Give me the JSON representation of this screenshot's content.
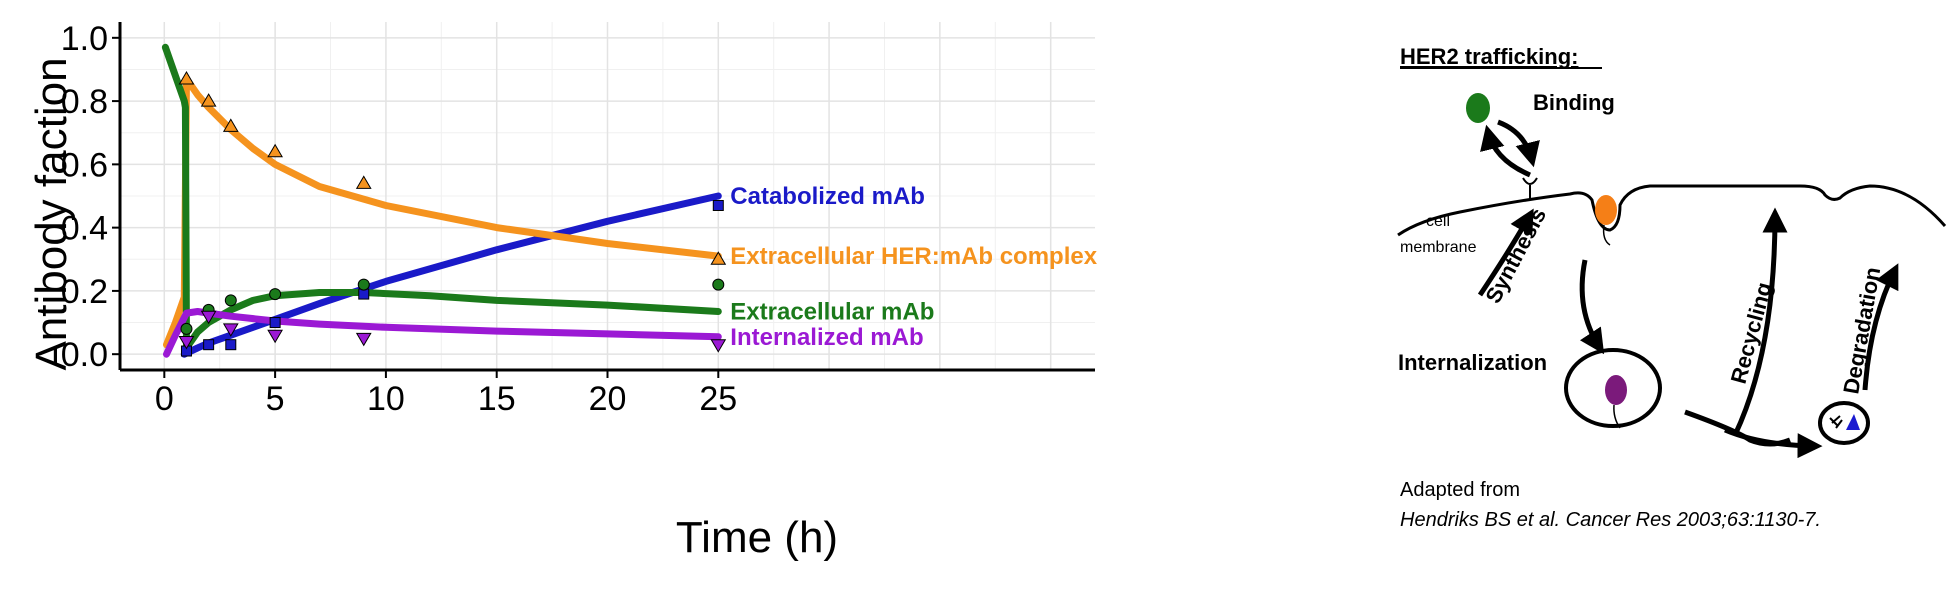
{
  "chart_data": {
    "type": "line",
    "xlabel": "Time (h)",
    "ylabel": "Antibody faction",
    "xlim": [
      -2,
      42
    ],
    "ylim": [
      -0.05,
      1.05
    ],
    "x_ticks": [
      0,
      5,
      10,
      15,
      20,
      25
    ],
    "y_ticks": [
      0.0,
      0.2,
      0.4,
      0.6,
      0.8,
      1.0
    ],
    "x_tick_labels": [
      "0",
      "5",
      "10",
      "15",
      "20",
      "25"
    ],
    "y_tick_labels": [
      "0.0",
      "0.2",
      "0.4",
      "0.6",
      "0.8",
      "1.0"
    ],
    "grid": true,
    "series": [
      {
        "name": "Catabolized mAb",
        "color": "#1a1ac8",
        "marker": "square",
        "curve": [
          [
            0.9,
            0.0
          ],
          [
            1.5,
            0.02
          ],
          [
            2,
            0.035
          ],
          [
            3,
            0.06
          ],
          [
            4,
            0.085
          ],
          [
            5,
            0.11
          ],
          [
            7,
            0.16
          ],
          [
            10,
            0.23
          ],
          [
            15,
            0.33
          ],
          [
            20,
            0.42
          ],
          [
            25,
            0.5
          ]
        ],
        "observed": [
          [
            1,
            0.01
          ],
          [
            2,
            0.03
          ],
          [
            3,
            0.03
          ],
          [
            5,
            0.1
          ],
          [
            9,
            0.19
          ],
          [
            25,
            0.47
          ]
        ]
      },
      {
        "name": "Extracellular HER:mAb complex",
        "color": "#f5931e",
        "marker": "triangle-up",
        "curve": [
          [
            0.1,
            0.03
          ],
          [
            0.5,
            0.1
          ],
          [
            0.9,
            0.18
          ],
          [
            1,
            0.87
          ],
          [
            1.5,
            0.82
          ],
          [
            2,
            0.78
          ],
          [
            3,
            0.71
          ],
          [
            4,
            0.65
          ],
          [
            5,
            0.6
          ],
          [
            7,
            0.53
          ],
          [
            10,
            0.47
          ],
          [
            15,
            0.4
          ],
          [
            20,
            0.35
          ],
          [
            25,
            0.31
          ]
        ],
        "observed": [
          [
            1,
            0.87
          ],
          [
            2,
            0.8
          ],
          [
            3,
            0.72
          ],
          [
            5,
            0.64
          ],
          [
            9,
            0.54
          ],
          [
            25,
            0.3
          ]
        ]
      },
      {
        "name": "Extracellular mAb",
        "color": "#1b7a1b",
        "marker": "circle",
        "curve": [
          [
            0.05,
            0.97
          ],
          [
            0.5,
            0.88
          ],
          [
            0.9,
            0.8
          ],
          [
            0.95,
            0.78
          ],
          [
            1,
            0.02
          ],
          [
            1.5,
            0.07
          ],
          [
            2,
            0.1
          ],
          [
            3,
            0.14
          ],
          [
            4,
            0.17
          ],
          [
            5,
            0.185
          ],
          [
            7,
            0.195
          ],
          [
            9,
            0.195
          ],
          [
            12,
            0.185
          ],
          [
            15,
            0.17
          ],
          [
            20,
            0.155
          ],
          [
            25,
            0.135
          ]
        ],
        "observed": [
          [
            1,
            0.08
          ],
          [
            2,
            0.14
          ],
          [
            3,
            0.17
          ],
          [
            5,
            0.19
          ],
          [
            9,
            0.22
          ],
          [
            25,
            0.22
          ]
        ]
      },
      {
        "name": "Internalized mAb",
        "color": "#9b19d4",
        "marker": "triangle-down",
        "curve": [
          [
            0.1,
            0.0
          ],
          [
            0.5,
            0.06
          ],
          [
            1,
            0.13
          ],
          [
            1.5,
            0.135
          ],
          [
            2,
            0.13
          ],
          [
            3,
            0.12
          ],
          [
            5,
            0.105
          ],
          [
            7,
            0.095
          ],
          [
            10,
            0.085
          ],
          [
            15,
            0.073
          ],
          [
            20,
            0.064
          ],
          [
            25,
            0.055
          ]
        ],
        "observed": [
          [
            1,
            0.04
          ],
          [
            2,
            0.12
          ],
          [
            3,
            0.08
          ],
          [
            5,
            0.06
          ],
          [
            9,
            0.05
          ],
          [
            25,
            0.03
          ]
        ]
      }
    ]
  },
  "diagram": {
    "title": "HER2 trafficking:",
    "binding": "Binding",
    "cell": "cell",
    "membrane": "membrane",
    "synthesis": "Synthesis",
    "internalization": "Internalization",
    "recycling": "Recycling",
    "degradation": "Degradation",
    "colors": {
      "antibody": "#1b7a1b",
      "complex": "#f57f17",
      "internalized": "#7b1a7b",
      "degraded": "#1a1ad0"
    }
  },
  "credit": {
    "line1": "Adapted from",
    "line2": "Hendriks BS et al. Cancer Res 2003;63:1130-7."
  }
}
